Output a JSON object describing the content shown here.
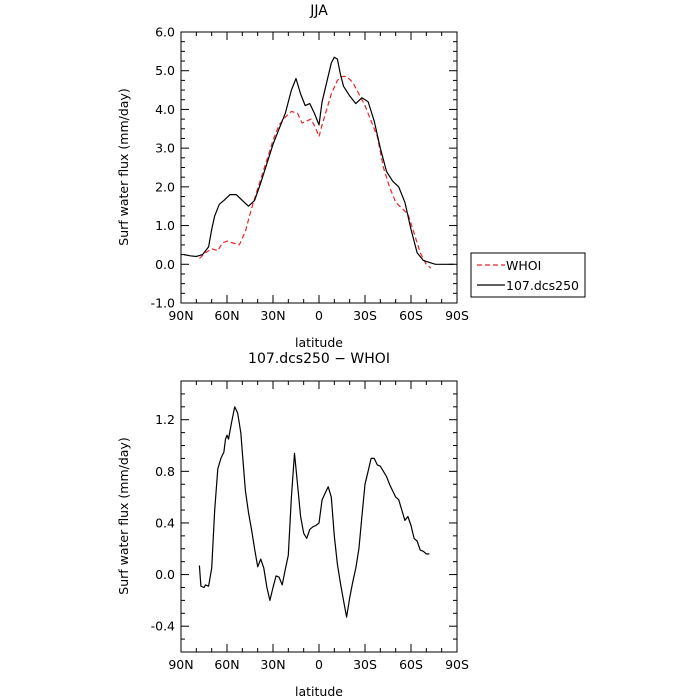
{
  "chart_data": [
    {
      "type": "line",
      "title": "JJA",
      "xlabel": "latitude",
      "ylabel": "Surf water flux (mm/day)",
      "xlim": [
        90,
        -90
      ],
      "ylim": [
        -1.0,
        6.0
      ],
      "xticks": [
        90,
        60,
        30,
        0,
        -30,
        -60,
        -90
      ],
      "xtick_labels": [
        "90N",
        "60N",
        "30N",
        "0",
        "30S",
        "60S",
        "90S"
      ],
      "yticks": [
        -1.0,
        0.0,
        1.0,
        2.0,
        3.0,
        4.0,
        5.0,
        6.0
      ],
      "ytick_labels": [
        "-1.0",
        "0.0",
        "1.0",
        "2.0",
        "3.0",
        "4.0",
        "5.0",
        "6.0"
      ],
      "legend_position": "right",
      "series": [
        {
          "name": "WHOI",
          "color": "#e8262c",
          "dash": "dashed",
          "x": [
            78,
            74,
            70,
            66,
            63,
            60,
            56,
            52,
            48,
            45,
            42,
            38,
            34,
            30,
            26,
            22,
            18,
            14,
            11,
            8,
            5,
            2,
            0,
            -2,
            -5,
            -8,
            -12,
            -15,
            -18,
            -22,
            -26,
            -30,
            -34,
            -38,
            -42,
            -46,
            -50,
            -54,
            -58,
            -62,
            -66,
            -70,
            -73
          ],
          "y": [
            0.15,
            0.3,
            0.4,
            0.35,
            0.55,
            0.6,
            0.55,
            0.5,
            0.85,
            1.3,
            1.7,
            2.2,
            2.7,
            3.2,
            3.6,
            3.8,
            3.95,
            3.9,
            3.65,
            3.7,
            3.75,
            3.5,
            3.3,
            3.6,
            4.0,
            4.4,
            4.75,
            4.85,
            4.85,
            4.7,
            4.4,
            4.1,
            3.7,
            3.3,
            2.5,
            2.0,
            1.6,
            1.45,
            1.3,
            0.8,
            0.3,
            0.0,
            -0.1
          ]
        },
        {
          "name": "107.dcs250",
          "color": "#000000",
          "dash": "solid",
          "x": [
            88,
            84,
            80,
            76,
            72,
            70,
            68,
            65,
            62,
            58,
            54,
            50,
            46,
            42,
            38,
            34,
            30,
            26,
            22,
            18,
            15,
            12,
            9,
            6,
            3,
            0,
            -2,
            -5,
            -8,
            -10,
            -12,
            -14,
            -16,
            -20,
            -24,
            -28,
            -32,
            -36,
            -40,
            -44,
            -48,
            -52,
            -56,
            -60,
            -64,
            -68,
            -72,
            -76,
            -80,
            -84,
            -88
          ],
          "y": [
            0.25,
            0.22,
            0.2,
            0.25,
            0.45,
            0.9,
            1.25,
            1.55,
            1.65,
            1.8,
            1.8,
            1.65,
            1.5,
            1.65,
            2.1,
            2.6,
            3.1,
            3.5,
            3.9,
            4.5,
            4.8,
            4.4,
            4.1,
            4.15,
            3.9,
            3.6,
            4.2,
            4.7,
            5.2,
            5.35,
            5.3,
            4.9,
            4.6,
            4.35,
            4.15,
            4.3,
            4.2,
            3.7,
            3.0,
            2.4,
            2.15,
            2.0,
            1.6,
            0.9,
            0.3,
            0.1,
            0.05,
            0.0,
            0.0,
            0.0,
            0.0
          ]
        }
      ]
    },
    {
      "type": "line",
      "title": "107.dcs250 − WHOI",
      "xlabel": "latitude",
      "ylabel": "Surf water flux (mm/day)",
      "xlim": [
        90,
        -90
      ],
      "ylim": [
        -0.6,
        1.5
      ],
      "xticks": [
        90,
        60,
        30,
        0,
        -30,
        -60,
        -90
      ],
      "xtick_labels": [
        "90N",
        "60N",
        "30N",
        "0",
        "30S",
        "60S",
        "90S"
      ],
      "yticks": [
        -0.4,
        0.0,
        0.4,
        0.8,
        1.2
      ],
      "ytick_labels": [
        "-0.4",
        "0.0",
        "0.4",
        "0.8",
        "1.2"
      ],
      "series": [
        {
          "color": "#000000",
          "dash": "solid",
          "x": [
            78,
            77,
            75,
            74,
            72,
            70,
            68,
            66,
            64,
            62,
            61,
            60,
            59,
            57,
            55,
            53,
            51,
            50,
            48,
            46,
            44,
            42,
            40,
            38,
            36,
            34,
            32,
            30,
            28,
            26,
            24,
            22,
            20,
            18,
            16,
            14,
            12,
            10,
            8,
            6,
            4,
            2,
            0,
            -2,
            -4,
            -6,
            -8,
            -10,
            -12,
            -14,
            -16,
            -18,
            -20,
            -22,
            -24,
            -26,
            -28,
            -30,
            -32,
            -34,
            -36,
            -38,
            -40,
            -42,
            -44,
            -46,
            -48,
            -50,
            -52,
            -54,
            -56,
            -58,
            -60,
            -62,
            -64,
            -66,
            -68,
            -70,
            -72
          ],
          "y": [
            0.07,
            -0.09,
            -0.1,
            -0.08,
            -0.09,
            0.05,
            0.5,
            0.82,
            0.9,
            0.95,
            1.05,
            1.08,
            1.05,
            1.18,
            1.3,
            1.25,
            1.1,
            0.95,
            0.65,
            0.48,
            0.35,
            0.2,
            0.06,
            0.12,
            0.05,
            -0.1,
            -0.2,
            -0.1,
            -0.01,
            -0.02,
            -0.08,
            0.04,
            0.15,
            0.6,
            0.94,
            0.7,
            0.45,
            0.32,
            0.28,
            0.35,
            0.37,
            0.38,
            0.4,
            0.58,
            0.63,
            0.68,
            0.6,
            0.3,
            0.08,
            -0.07,
            -0.2,
            -0.33,
            -0.18,
            -0.06,
            0.05,
            0.2,
            0.45,
            0.7,
            0.8,
            0.9,
            0.9,
            0.85,
            0.84,
            0.8,
            0.76,
            0.7,
            0.65,
            0.6,
            0.58,
            0.5,
            0.42,
            0.45,
            0.38,
            0.28,
            0.26,
            0.19,
            0.18,
            0.16,
            0.16
          ]
        }
      ]
    }
  ]
}
